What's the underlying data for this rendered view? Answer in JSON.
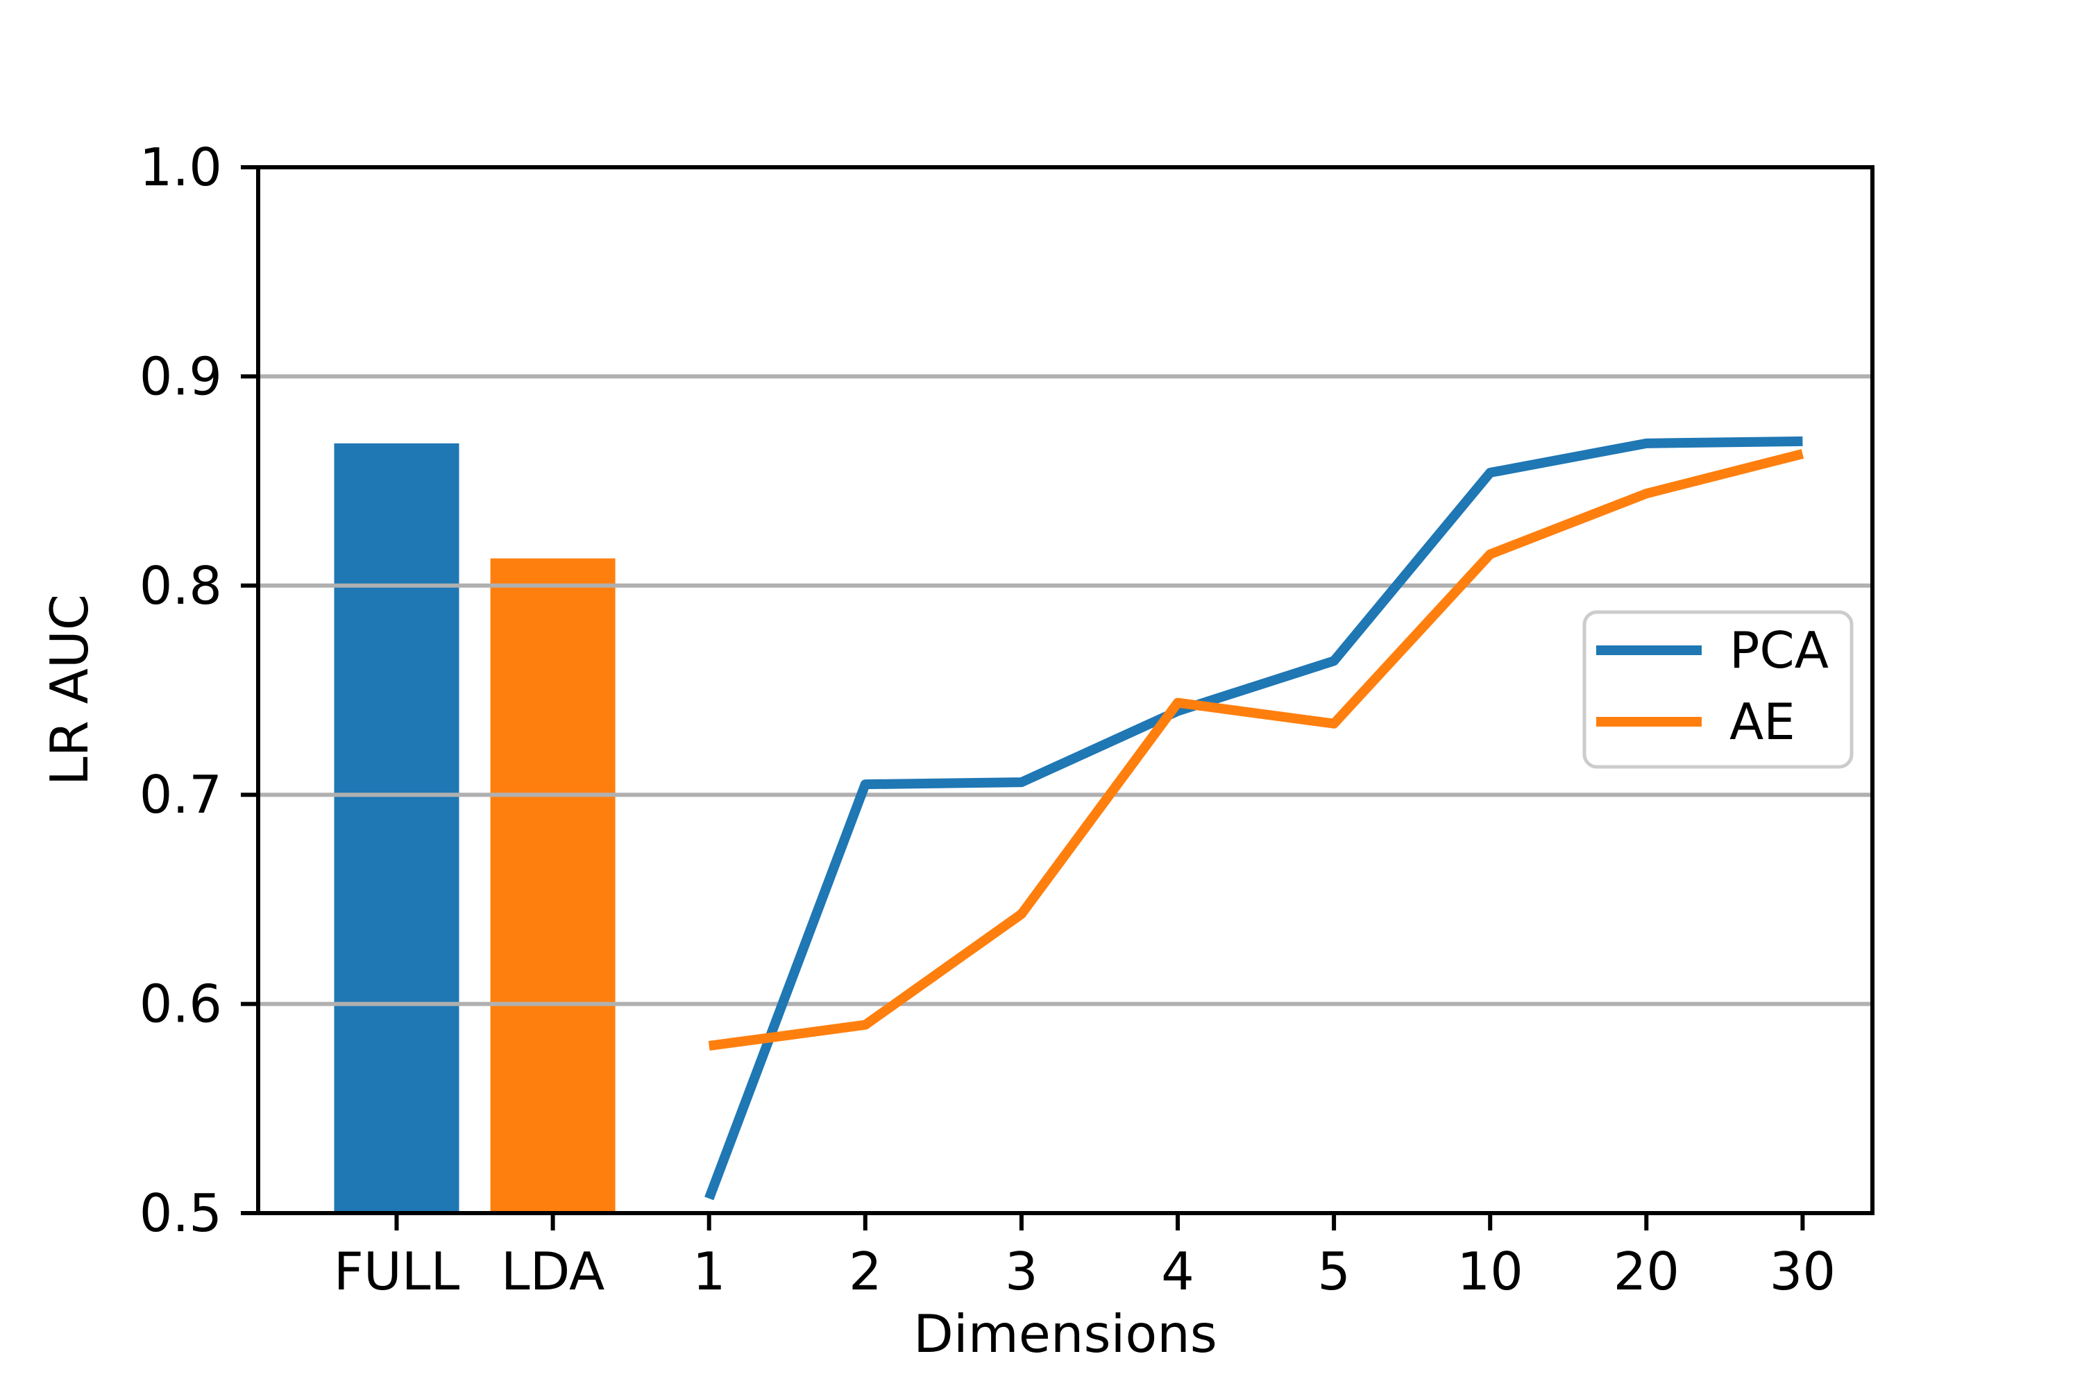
{
  "chart_data": {
    "type": "bar+line",
    "title": "",
    "xlabel": "Dimensions",
    "ylabel": "LR AUC",
    "categories": [
      "FULL",
      "LDA",
      "1",
      "2",
      "3",
      "4",
      "5",
      "10",
      "20",
      "30"
    ],
    "ylim": [
      0.5,
      1.0
    ],
    "yticks": [
      0.5,
      0.6,
      0.7,
      0.8,
      0.9,
      1.0
    ],
    "grid": true,
    "bars": [
      {
        "name": "FULL",
        "category": "FULL",
        "value": 0.868,
        "color": "#1f77b4"
      },
      {
        "name": "LDA",
        "category": "LDA",
        "value": 0.813,
        "color": "#ff7f0e"
      }
    ],
    "series": [
      {
        "name": "PCA",
        "color": "#1f77b4",
        "x": [
          "1",
          "2",
          "3",
          "4",
          "5",
          "10",
          "20",
          "30"
        ],
        "values": [
          0.507,
          0.705,
          0.706,
          0.74,
          0.764,
          0.854,
          0.868,
          0.869
        ]
      },
      {
        "name": "AE",
        "color": "#ff7f0e",
        "x": [
          "1",
          "2",
          "3",
          "4",
          "5",
          "10",
          "20",
          "30"
        ],
        "values": [
          0.58,
          0.59,
          0.643,
          0.744,
          0.734,
          0.815,
          0.844,
          0.863
        ]
      }
    ],
    "legend": {
      "position": "center right",
      "entries": [
        "PCA",
        "AE"
      ]
    },
    "colors": {
      "series_blue": "#1f77b4",
      "series_orange": "#ff7f0e",
      "grid": "#b0b0b0",
      "spine": "#000000",
      "legend_border": "#cccccc",
      "background": "#ffffff",
      "text": "#000000"
    }
  }
}
